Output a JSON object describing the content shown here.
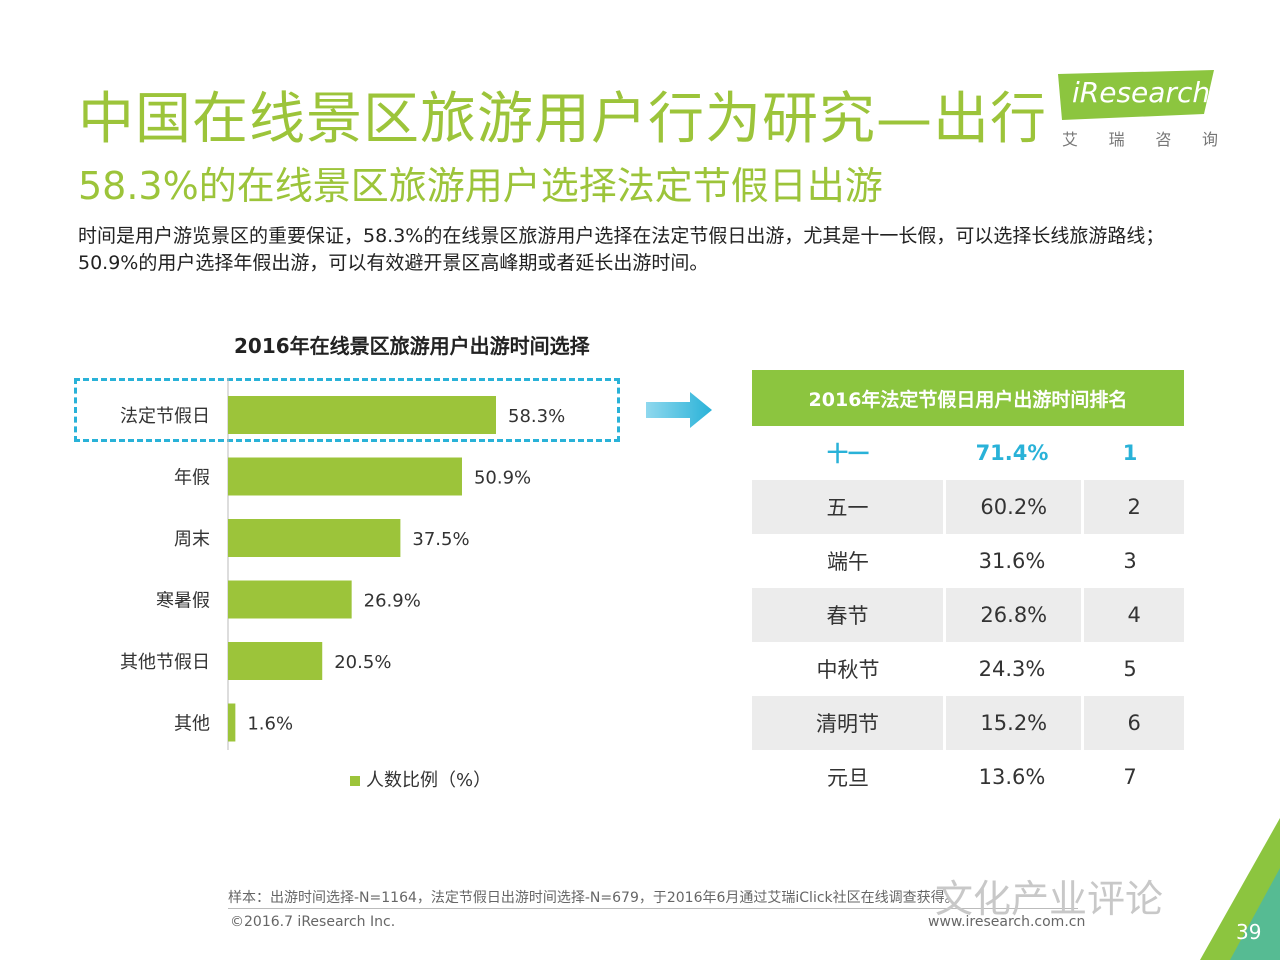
{
  "header": {
    "title": "中国在线景区旅游用户行为研究—出行",
    "subtitle": "58.3%的在线景区旅游用户选择法定节假日出游",
    "description": "时间是用户游览景区的重要保证，58.3%的在线景区旅游用户选择在法定节假日出游，尤其是十一长假，可以选择长线旅游路线；50.9%的用户选择年假出游，可以有效避开景区高峰期或者延长出游时间。"
  },
  "logo": {
    "brand": "iResearch",
    "sub": [
      "艾",
      "瑞",
      "咨",
      "询"
    ]
  },
  "chart_data": {
    "type": "bar",
    "orientation": "horizontal",
    "title": "2016年在线景区旅游用户出游时间选择",
    "categories": [
      "法定节假日",
      "年假",
      "周末",
      "寒暑假",
      "其他节假日",
      "其他"
    ],
    "values": [
      58.3,
      50.9,
      37.5,
      26.9,
      20.5,
      1.6
    ],
    "value_labels": [
      "58.3%",
      "50.9%",
      "37.5%",
      "26.9%",
      "20.5%",
      "1.6%"
    ],
    "series": [
      {
        "name": "人数比例（%）",
        "values": [
          58.3,
          50.9,
          37.5,
          26.9,
          20.5,
          1.6
        ]
      }
    ],
    "highlighted_category": "法定节假日",
    "xlim": [
      0,
      100
    ],
    "legend_position": "bottom",
    "color": "#9cc43a"
  },
  "ranking_table": {
    "title": "2016年法定节假日用户出游时间排名",
    "rows": [
      {
        "holiday": "十一",
        "share": "71.4%",
        "rank": "1"
      },
      {
        "holiday": "五一",
        "share": "60.2%",
        "rank": "2"
      },
      {
        "holiday": "端午",
        "share": "31.6%",
        "rank": "3"
      },
      {
        "holiday": "春节",
        "share": "26.8%",
        "rank": "4"
      },
      {
        "holiday": "中秋节",
        "share": "24.3%",
        "rank": "5"
      },
      {
        "holiday": "清明节",
        "share": "15.2%",
        "rank": "6"
      },
      {
        "holiday": "元旦",
        "share": "13.6%",
        "rank": "7"
      }
    ]
  },
  "footer": {
    "note": "样本：出游时间选择-N=1164，法定节假日出游时间选择-N=679，于2016年6月通过艾瑞iClick社区在线调查获得。",
    "copyright": "©2016.7 iResearch Inc.",
    "url": "www.iresearch.com.cn",
    "watermark": "文化产业评论",
    "page": "39"
  },
  "colors": {
    "accent": "#9cc43a",
    "highlight": "#29b2d8",
    "table_header": "#8cc53f"
  }
}
